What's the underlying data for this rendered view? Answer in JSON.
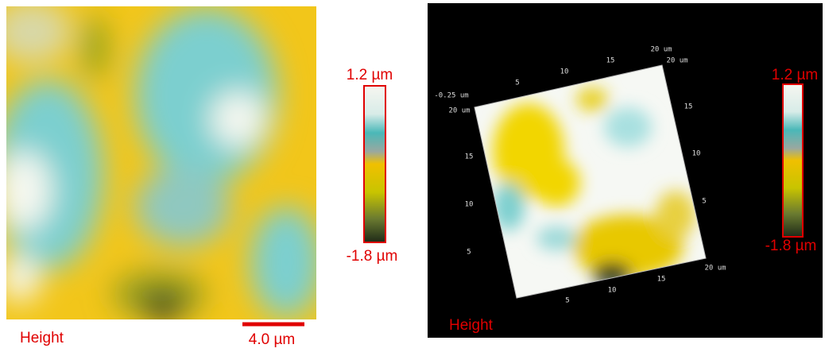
{
  "left_panel": {
    "colorbar": {
      "max_label": "1.2 µm",
      "min_label": "-1.8 µm"
    },
    "caption": "Height",
    "scale_bar": "4.0 µm"
  },
  "right_panel": {
    "colorbar": {
      "max_label": "1.2 µm",
      "min_label": "-1.8 µm"
    },
    "caption": "Height",
    "axis_labels": [
      "-0.25 um",
      "20 um",
      "5",
      "10",
      "15",
      "20 um",
      "20 um",
      "15",
      "10",
      "5",
      "20 um",
      "15",
      "10",
      "5",
      "5",
      "10",
      "15"
    ]
  }
}
